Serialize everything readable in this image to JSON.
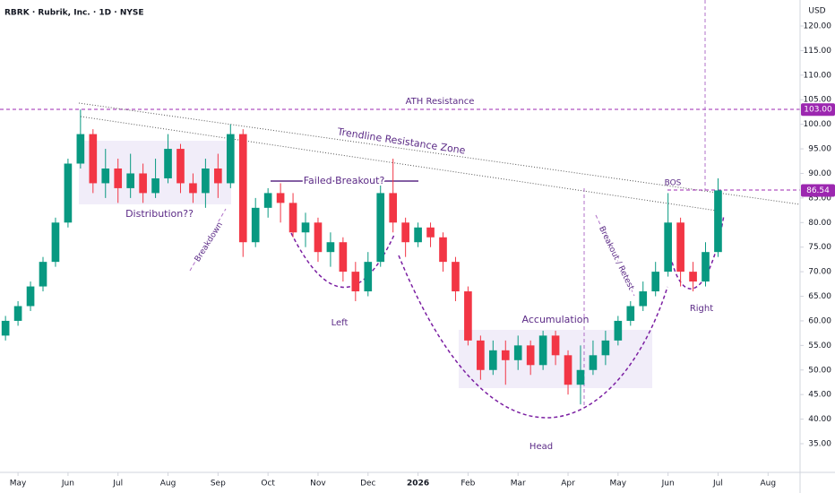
{
  "chart_data": {
    "type": "candlestick",
    "title": "RBRK · Rubrik, Inc. · 1D · NYSE",
    "currency": "USD",
    "up_color": "#089981",
    "down_color": "#f23645",
    "grid": false,
    "xlim": [
      3.64,
      19.64
    ],
    "xticks": [
      {
        "value": 4,
        "label": "May"
      },
      {
        "value": 5,
        "label": "Jun"
      },
      {
        "value": 6,
        "label": "Jul"
      },
      {
        "value": 7,
        "label": "Aug"
      },
      {
        "value": 8,
        "label": "Sep"
      },
      {
        "value": 9,
        "label": "Oct"
      },
      {
        "value": 10,
        "label": "Nov"
      },
      {
        "value": 11,
        "label": "Dec"
      },
      {
        "value": 12,
        "label": "2026"
      },
      {
        "value": 13,
        "label": "Feb"
      },
      {
        "value": 14,
        "label": "Mar"
      },
      {
        "value": 15,
        "label": "Apr"
      },
      {
        "value": 16,
        "label": "May"
      },
      {
        "value": 17,
        "label": "Jun"
      },
      {
        "value": 18,
        "label": "Jul"
      },
      {
        "value": 19,
        "label": "Aug"
      }
    ],
    "ylim": [
      33,
      125
    ],
    "yticks": [
      {
        "value": 35,
        "label": "35.00"
      },
      {
        "value": 40,
        "label": "40.00"
      },
      {
        "value": 45,
        "label": "45.00"
      },
      {
        "value": 50,
        "label": "50.00"
      },
      {
        "value": 55,
        "label": "55.00"
      },
      {
        "value": 60,
        "label": "60.00"
      },
      {
        "value": 65,
        "label": "65.00"
      },
      {
        "value": 70,
        "label": "70.00"
      },
      {
        "value": 75,
        "label": "75.00"
      },
      {
        "value": 80,
        "label": "80.00"
      },
      {
        "value": 85,
        "label": "85.00"
      },
      {
        "value": 90,
        "label": "90.00"
      },
      {
        "value": 95,
        "label": "95.00"
      },
      {
        "value": 100,
        "label": "100.00"
      },
      {
        "value": 105,
        "label": "105.00"
      },
      {
        "value": 110,
        "label": "110.00"
      },
      {
        "value": 115,
        "label": "115.00"
      },
      {
        "value": 120,
        "label": "120.00"
      }
    ],
    "price_lines": [
      {
        "value": 103,
        "label": "103.00",
        "color": "#9c27b0"
      },
      {
        "value": 86.54,
        "color": "#9c27b0"
      }
    ],
    "x": [
      3.75,
      4.0,
      4.25,
      4.5,
      4.75,
      5.0,
      5.25,
      5.5,
      5.75,
      6.0,
      6.25,
      6.5,
      6.75,
      7.0,
      7.25,
      7.5,
      7.75,
      8.0,
      8.25,
      8.5,
      8.75,
      9.0,
      9.25,
      9.5,
      9.75,
      10.0,
      10.25,
      10.5,
      10.75,
      11.0,
      11.25,
      11.5,
      11.75,
      12.0,
      12.25,
      12.5,
      12.75,
      13.0,
      13.25,
      13.5,
      13.75,
      14.0,
      14.25,
      14.5,
      14.75,
      15.0,
      15.25,
      15.5,
      15.75,
      16.0,
      16.25,
      16.5,
      16.75,
      17.0,
      17.25,
      17.5,
      17.75,
      18.0
    ],
    "open": [
      57,
      60,
      63,
      67,
      72,
      80,
      92,
      98,
      88,
      91,
      87,
      90,
      86,
      89,
      95,
      88,
      86,
      91,
      88,
      98,
      76,
      83,
      86,
      84,
      78,
      80,
      74,
      76,
      70,
      66,
      72,
      86,
      80,
      76,
      79,
      77,
      72,
      66,
      56,
      50,
      54,
      52,
      55,
      51,
      57,
      53,
      47,
      50,
      53,
      56,
      60,
      63,
      66,
      70,
      80,
      70,
      68,
      74
    ],
    "high": [
      61,
      64,
      68,
      73,
      81,
      93,
      103,
      99,
      95,
      93,
      94,
      92,
      93,
      98,
      96,
      90,
      93,
      94,
      100,
      99,
      85,
      87,
      88,
      86,
      82,
      81,
      78,
      77,
      72,
      74,
      88,
      93,
      81,
      80,
      80,
      78,
      73,
      67,
      57,
      56,
      56,
      57,
      56,
      58,
      58,
      54,
      55,
      56,
      58,
      61,
      64,
      68,
      72,
      86,
      81,
      72,
      76,
      89
    ],
    "low": [
      56,
      59,
      62,
      66,
      71,
      79,
      91,
      86,
      85,
      84,
      85,
      84,
      85,
      88,
      86,
      84,
      83,
      85,
      87,
      73,
      75,
      81,
      80,
      77,
      75,
      72,
      71,
      68,
      64,
      65,
      71,
      78,
      73,
      75,
      75,
      70,
      64,
      55,
      48,
      49,
      47,
      50,
      49,
      50,
      51,
      45,
      43,
      49,
      51,
      55,
      59,
      62,
      65,
      69,
      67,
      66,
      67,
      73
    ],
    "close": [
      60,
      63,
      67,
      72,
      80,
      92,
      98,
      88,
      91,
      87,
      90,
      86,
      89,
      95,
      88,
      86,
      91,
      88,
      98,
      76,
      83,
      86,
      84,
      78,
      80,
      74,
      76,
      70,
      66,
      72,
      86,
      80,
      76,
      79,
      77,
      72,
      66,
      56,
      50,
      54,
      52,
      55,
      51,
      57,
      53,
      47,
      50,
      53,
      56,
      60,
      63,
      66,
      70,
      80,
      70,
      68,
      74,
      86.54
    ],
    "annotations": {
      "ath": "ATH Resistance",
      "trendline": "Trendline Resistance Zone",
      "failed": "Failed Breakout?",
      "distribution": "Distribution??",
      "breakdown": "Breakdown",
      "left": "Left",
      "head": "Head",
      "right": "Right",
      "accumulation": "Accumulation",
      "bos": "BOS",
      "retest": "Breakout / Retest"
    }
  }
}
